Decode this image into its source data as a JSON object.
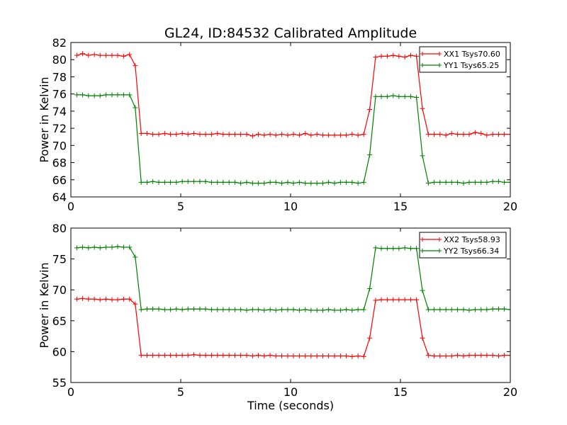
{
  "figure": {
    "title": "GL24, ID:84532 Calibrated Amplitude"
  },
  "chart_data": [
    {
      "type": "line",
      "title": "GL24, ID:84532 Calibrated Amplitude",
      "xlabel": "",
      "ylabel": "Power in Kelvin",
      "xlim": [
        0,
        20
      ],
      "ylim": [
        64,
        82
      ],
      "xticks": [
        "0",
        "5",
        "10",
        "15",
        "20"
      ],
      "yticks": [
        "64",
        "66",
        "68",
        "70",
        "72",
        "74",
        "76",
        "78",
        "80",
        "82"
      ],
      "legend_position": "top-right",
      "x": [
        0.27,
        0.53,
        0.8,
        1.07,
        1.33,
        1.6,
        1.87,
        2.13,
        2.4,
        2.67,
        2.93,
        3.2,
        3.47,
        3.73,
        4.0,
        4.27,
        4.53,
        4.8,
        5.07,
        5.33,
        5.6,
        5.87,
        6.13,
        6.4,
        6.67,
        6.93,
        7.2,
        7.47,
        7.73,
        8.0,
        8.27,
        8.53,
        8.8,
        9.07,
        9.33,
        9.6,
        9.87,
        10.13,
        10.4,
        10.67,
        10.93,
        11.2,
        11.47,
        11.73,
        12.0,
        12.27,
        12.53,
        12.8,
        13.07,
        13.33,
        13.6,
        13.87,
        14.13,
        14.4,
        14.67,
        14.93,
        15.2,
        15.47,
        15.73,
        16.0,
        16.27,
        16.53,
        16.8,
        17.07,
        17.33,
        17.6,
        17.87,
        18.13,
        18.4,
        18.67,
        18.93,
        19.2,
        19.47,
        19.73,
        20.0
      ],
      "series": [
        {
          "name": "XX1 Tsys70.60",
          "color": "#ff0000",
          "values": [
            80.5,
            80.7,
            80.5,
            80.6,
            80.5,
            80.5,
            80.5,
            80.5,
            80.4,
            80.6,
            79.3,
            71.4,
            71.4,
            71.3,
            71.3,
            71.4,
            71.3,
            71.3,
            71.4,
            71.3,
            71.4,
            71.3,
            71.3,
            71.3,
            71.4,
            71.3,
            71.3,
            71.3,
            71.3,
            71.3,
            71.1,
            71.3,
            71.2,
            71.3,
            71.2,
            71.3,
            71.2,
            71.3,
            71.2,
            71.4,
            71.2,
            71.3,
            71.2,
            71.2,
            71.2,
            71.2,
            71.2,
            71.3,
            71.2,
            71.3,
            74.2,
            80.3,
            80.4,
            80.4,
            80.5,
            80.4,
            80.3,
            80.5,
            80.4,
            74.3,
            71.3,
            71.3,
            71.3,
            71.2,
            71.4,
            71.3,
            71.3,
            71.3,
            71.5,
            71.4,
            71.2,
            71.3,
            71.3,
            71.3,
            71.3
          ]
        },
        {
          "name": "YY1 Tsys65.25",
          "color": "#008000",
          "values": [
            75.9,
            75.9,
            75.8,
            75.8,
            75.8,
            75.9,
            75.9,
            75.9,
            75.9,
            75.9,
            74.4,
            65.7,
            65.7,
            65.8,
            65.7,
            65.7,
            65.7,
            65.7,
            65.8,
            65.8,
            65.8,
            65.8,
            65.8,
            65.7,
            65.7,
            65.7,
            65.7,
            65.7,
            65.6,
            65.7,
            65.6,
            65.6,
            65.6,
            65.7,
            65.7,
            65.6,
            65.7,
            65.6,
            65.7,
            65.6,
            65.6,
            65.6,
            65.6,
            65.7,
            65.6,
            65.7,
            65.7,
            65.7,
            65.6,
            65.7,
            68.9,
            75.7,
            75.7,
            75.7,
            75.8,
            75.7,
            75.7,
            75.7,
            75.6,
            68.8,
            65.6,
            65.7,
            65.7,
            65.7,
            65.7,
            65.7,
            65.6,
            65.7,
            65.7,
            65.7,
            65.7,
            65.8,
            65.8,
            65.7,
            65.7
          ]
        }
      ]
    },
    {
      "type": "line",
      "title": "",
      "xlabel": "Time (seconds)",
      "ylabel": "Power in Kelvin",
      "xlim": [
        0,
        20
      ],
      "ylim": [
        55,
        80
      ],
      "xticks": [
        "0",
        "5",
        "10",
        "15",
        "20"
      ],
      "yticks": [
        "55",
        "60",
        "65",
        "70",
        "75",
        "80"
      ],
      "legend_position": "top-right",
      "x": [
        0.27,
        0.53,
        0.8,
        1.07,
        1.33,
        1.6,
        1.87,
        2.13,
        2.4,
        2.67,
        2.93,
        3.2,
        3.47,
        3.73,
        4.0,
        4.27,
        4.53,
        4.8,
        5.07,
        5.33,
        5.6,
        5.87,
        6.13,
        6.4,
        6.67,
        6.93,
        7.2,
        7.47,
        7.73,
        8.0,
        8.27,
        8.53,
        8.8,
        9.07,
        9.33,
        9.6,
        9.87,
        10.13,
        10.4,
        10.67,
        10.93,
        11.2,
        11.47,
        11.73,
        12.0,
        12.27,
        12.53,
        12.8,
        13.07,
        13.33,
        13.6,
        13.87,
        14.13,
        14.4,
        14.67,
        14.93,
        15.2,
        15.47,
        15.73,
        16.0,
        16.27,
        16.53,
        16.8,
        17.07,
        17.33,
        17.6,
        17.87,
        18.13,
        18.4,
        18.67,
        18.93,
        19.2,
        19.47,
        19.73,
        20.0
      ],
      "series": [
        {
          "name": "XX2 Tsys58.93",
          "color": "#ff0000",
          "values": [
            68.5,
            68.6,
            68.5,
            68.5,
            68.4,
            68.5,
            68.4,
            68.4,
            68.5,
            68.5,
            67.7,
            59.4,
            59.4,
            59.4,
            59.4,
            59.4,
            59.4,
            59.4,
            59.4,
            59.4,
            59.5,
            59.4,
            59.4,
            59.4,
            59.4,
            59.4,
            59.4,
            59.4,
            59.4,
            59.4,
            59.3,
            59.4,
            59.3,
            59.4,
            59.3,
            59.3,
            59.3,
            59.3,
            59.3,
            59.3,
            59.3,
            59.3,
            59.3,
            59.3,
            59.3,
            59.3,
            59.3,
            59.2,
            59.3,
            59.2,
            62.2,
            68.3,
            68.4,
            68.4,
            68.4,
            68.4,
            68.4,
            68.4,
            68.4,
            62.2,
            59.4,
            59.3,
            59.3,
            59.3,
            59.3,
            59.4,
            59.3,
            59.4,
            59.4,
            59.4,
            59.4,
            59.4,
            59.3,
            59.4,
            59.4
          ]
        },
        {
          "name": "YY2 Tsys66.34",
          "color": "#008000",
          "values": [
            76.8,
            76.9,
            76.8,
            76.9,
            76.8,
            76.9,
            76.9,
            77.0,
            76.9,
            76.9,
            75.3,
            66.8,
            66.9,
            66.9,
            66.9,
            66.8,
            66.8,
            66.9,
            66.8,
            66.9,
            66.9,
            66.9,
            66.9,
            66.8,
            66.8,
            66.8,
            66.8,
            66.8,
            66.8,
            66.7,
            66.8,
            66.8,
            66.7,
            66.8,
            66.7,
            66.8,
            66.8,
            66.8,
            66.7,
            66.8,
            66.7,
            66.7,
            66.7,
            66.8,
            66.7,
            66.7,
            66.8,
            66.7,
            66.8,
            66.8,
            70.2,
            76.8,
            76.7,
            76.7,
            76.7,
            76.7,
            76.8,
            76.7,
            76.7,
            69.9,
            66.8,
            66.8,
            66.8,
            66.8,
            66.8,
            66.8,
            66.8,
            66.7,
            66.8,
            66.8,
            66.8,
            66.9,
            66.9,
            66.9,
            66.8
          ]
        }
      ]
    }
  ]
}
